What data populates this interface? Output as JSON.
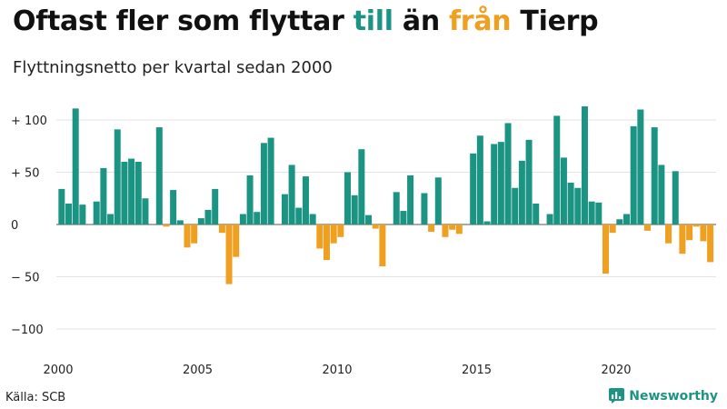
{
  "title": {
    "part1": "Oftast fler som flyttar ",
    "till": "till",
    "mid": " än ",
    "fran": "från",
    "part2": " Tierp"
  },
  "subtitle": "Flyttningsnetto per kvartal sedan 2000",
  "source": "Källa: SCB",
  "brand": "Newsworthy",
  "colors": {
    "positive": "#1b9484",
    "negative": "#f0a020",
    "grid": "#e3e3e3"
  },
  "chart_data": {
    "type": "bar",
    "title": "Oftast fler som flyttar till än från Tierp",
    "subtitle": "Flyttningsnetto per kvartal sedan 2000",
    "ylim": [
      -110,
      115
    ],
    "grid": true,
    "x_tick_labels": [
      "2000",
      "2005",
      "2010",
      "2015",
      "2020"
    ],
    "y_ticks": [
      100,
      50,
      0,
      -50,
      -100
    ],
    "y_tick_labels": [
      "+ 100",
      "+  50",
      "0",
      "− 50",
      "−100"
    ],
    "categories": [
      "2000K1",
      "2000K2",
      "2000K3",
      "2000K4",
      "2001K1",
      "2001K2",
      "2001K3",
      "2001K4",
      "2002K1",
      "2002K2",
      "2002K3",
      "2002K4",
      "2003K1",
      "2003K2",
      "2003K3",
      "2003K4",
      "2004K1",
      "2004K2",
      "2004K3",
      "2004K4",
      "2005K1",
      "2005K2",
      "2005K3",
      "2005K4",
      "2006K1",
      "2006K2",
      "2006K3",
      "2006K4",
      "2007K1",
      "2007K2",
      "2007K3",
      "2007K4",
      "2008K1",
      "2008K2",
      "2008K3",
      "2008K4",
      "2009K1",
      "2009K2",
      "2009K3",
      "2009K4",
      "2010K1",
      "2010K2",
      "2010K3",
      "2010K4",
      "2011K1",
      "2011K2",
      "2011K3",
      "2011K4",
      "2012K1",
      "2012K2",
      "2012K3",
      "2012K4",
      "2013K1",
      "2013K2",
      "2013K3",
      "2013K4",
      "2014K1",
      "2014K2",
      "2014K3",
      "2014K4",
      "2015K1",
      "2015K2",
      "2015K3",
      "2015K4",
      "2016K1",
      "2016K2",
      "2016K3",
      "2016K4",
      "2017K1",
      "2017K2",
      "2017K3",
      "2017K4",
      "2018K1",
      "2018K2",
      "2018K3",
      "2018K4",
      "2019K1",
      "2019K2",
      "2019K3",
      "2019K4",
      "2020K1",
      "2020K2",
      "2020K3",
      "2020K4",
      "2021K1",
      "2021K2",
      "2021K3",
      "2021K4",
      "2022K1",
      "2022K2",
      "2022K3",
      "2022K4",
      "2023K1",
      "2023K2",
      "2023K3",
      "2023K4"
    ],
    "values": [
      34,
      20,
      111,
      19,
      0,
      22,
      54,
      10,
      91,
      60,
      63,
      60,
      25,
      0,
      93,
      -2,
      33,
      4,
      -22,
      -18,
      6,
      14,
      34,
      -8,
      -57,
      -31,
      10,
      47,
      12,
      78,
      83,
      0,
      29,
      57,
      16,
      46,
      10,
      -23,
      -34,
      -18,
      -12,
      50,
      28,
      72,
      9,
      -4,
      -40,
      0,
      31,
      13,
      47,
      0,
      30,
      -7,
      45,
      -12,
      -5,
      -9,
      0,
      68,
      85,
      3,
      77,
      79,
      97,
      35,
      61,
      81,
      20,
      0,
      10,
      104,
      64,
      40,
      35,
      113,
      22,
      21,
      -47,
      -8,
      5,
      10,
      94,
      110,
      -6,
      93,
      57,
      -18,
      51,
      -28,
      -15,
      -2,
      -16,
      -36,
      0,
      0
    ]
  }
}
